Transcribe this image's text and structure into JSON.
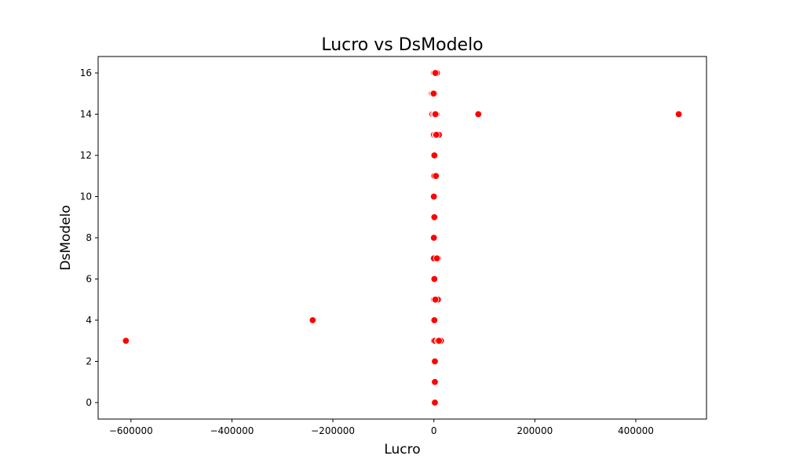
{
  "chart_data": {
    "type": "scatter",
    "title": "Lucro vs DsModelo",
    "xlabel": "Lucro",
    "ylabel": "DsModelo",
    "xlim": [
      -665000,
      540000
    ],
    "ylim": [
      -0.8,
      16.8
    ],
    "xticks": [
      -600000,
      -400000,
      -200000,
      0,
      200000,
      400000
    ],
    "xtick_labels": [
      "−600000",
      "−400000",
      "−200000",
      "0",
      "200000",
      "400000"
    ],
    "yticks": [
      0,
      2,
      4,
      6,
      8,
      10,
      12,
      14,
      16
    ],
    "ytick_labels": [
      "0",
      "2",
      "4",
      "6",
      "8",
      "10",
      "12",
      "14",
      "16"
    ],
    "grid": false,
    "marker_color": "#ff0000",
    "marker_edge_color": "#ffffff",
    "points": [
      {
        "x": -610000,
        "y": 3
      },
      {
        "x": -240000,
        "y": 4
      },
      {
        "x": 88000,
        "y": 14
      },
      {
        "x": 485000,
        "y": 14
      },
      {
        "x": 0,
        "y": 16
      },
      {
        "x": 2000,
        "y": 16
      },
      {
        "x": 4000,
        "y": 16
      },
      {
        "x": 6000,
        "y": 16
      },
      {
        "x": 3000,
        "y": 16
      },
      {
        "x": -4000,
        "y": 15
      },
      {
        "x": -2000,
        "y": 15
      },
      {
        "x": 0,
        "y": 15
      },
      {
        "x": 1000,
        "y": 15
      },
      {
        "x": -500,
        "y": 15
      },
      {
        "x": -3000,
        "y": 14
      },
      {
        "x": 0,
        "y": 14
      },
      {
        "x": 2000,
        "y": 14
      },
      {
        "x": 5000,
        "y": 14
      },
      {
        "x": 3000,
        "y": 14
      },
      {
        "x": 0,
        "y": 13
      },
      {
        "x": 3000,
        "y": 13
      },
      {
        "x": 7000,
        "y": 13
      },
      {
        "x": 10000,
        "y": 13
      },
      {
        "x": 5000,
        "y": 13
      },
      {
        "x": 0,
        "y": 12
      },
      {
        "x": 2000,
        "y": 12
      },
      {
        "x": 1000,
        "y": 12
      },
      {
        "x": 1000,
        "y": 11
      },
      {
        "x": 5000,
        "y": 11
      },
      {
        "x": 4000,
        "y": 11
      },
      {
        "x": 0,
        "y": 10
      },
      {
        "x": 0,
        "y": 9
      },
      {
        "x": 2000,
        "y": 9
      },
      {
        "x": 1000,
        "y": 9
      },
      {
        "x": 0,
        "y": 8
      },
      {
        "x": 0,
        "y": 7
      },
      {
        "x": 8000,
        "y": 7
      },
      {
        "x": 6000,
        "y": 7
      },
      {
        "x": 0,
        "y": 6
      },
      {
        "x": 1000,
        "y": 6
      },
      {
        "x": 0,
        "y": 5
      },
      {
        "x": 2000,
        "y": 5
      },
      {
        "x": 5000,
        "y": 5
      },
      {
        "x": 8000,
        "y": 5
      },
      {
        "x": 3000,
        "y": 5
      },
      {
        "x": -1000,
        "y": 4
      },
      {
        "x": 0,
        "y": 4
      },
      {
        "x": 1000,
        "y": 4
      },
      {
        "x": 0,
        "y": 3
      },
      {
        "x": 2000,
        "y": 3
      },
      {
        "x": 8000,
        "y": 3
      },
      {
        "x": 14000,
        "y": 3
      },
      {
        "x": 10000,
        "y": 3
      },
      {
        "x": 0,
        "y": 2
      },
      {
        "x": 1000,
        "y": 2
      },
      {
        "x": 2000,
        "y": 2
      },
      {
        "x": 2000,
        "y": 1
      },
      {
        "x": 1000,
        "y": 0
      },
      {
        "x": 2000,
        "y": 0
      }
    ]
  }
}
